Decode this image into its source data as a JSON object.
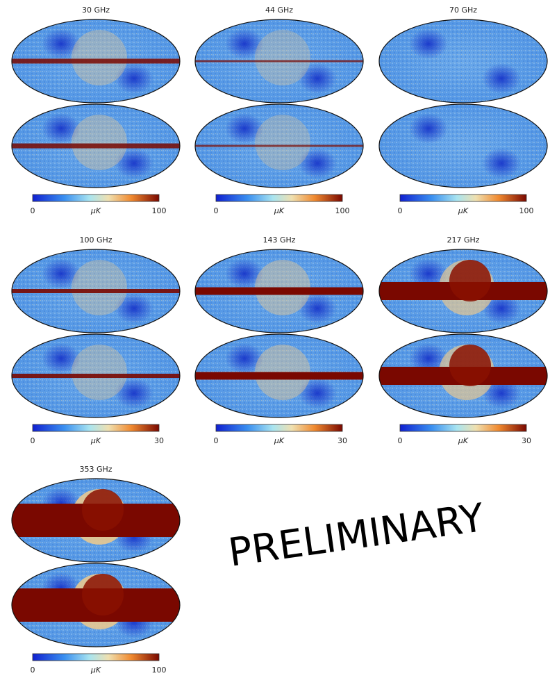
{
  "panels": [
    {
      "title": "30 GHz",
      "colorbar": {
        "min": 0,
        "unit": "μK",
        "max": 100
      }
    },
    {
      "title": "44 GHz",
      "colorbar": {
        "min": 0,
        "unit": "μK",
        "max": 100
      }
    },
    {
      "title": "70 GHz",
      "colorbar": {
        "min": 0,
        "unit": "μK",
        "max": 100
      }
    },
    {
      "title": "100 GHz",
      "colorbar": {
        "min": 0,
        "unit": "μK",
        "max": 30
      }
    },
    {
      "title": "143 GHz",
      "colorbar": {
        "min": 0,
        "unit": "μK",
        "max": 30
      }
    },
    {
      "title": "217 GHz",
      "colorbar": {
        "min": 0,
        "unit": "μK",
        "max": 30
      }
    },
    {
      "title": "353 GHz",
      "colorbar": {
        "min": 0,
        "unit": "μK",
        "max": 100
      }
    }
  ],
  "watermark": "PRELIMINARY"
}
